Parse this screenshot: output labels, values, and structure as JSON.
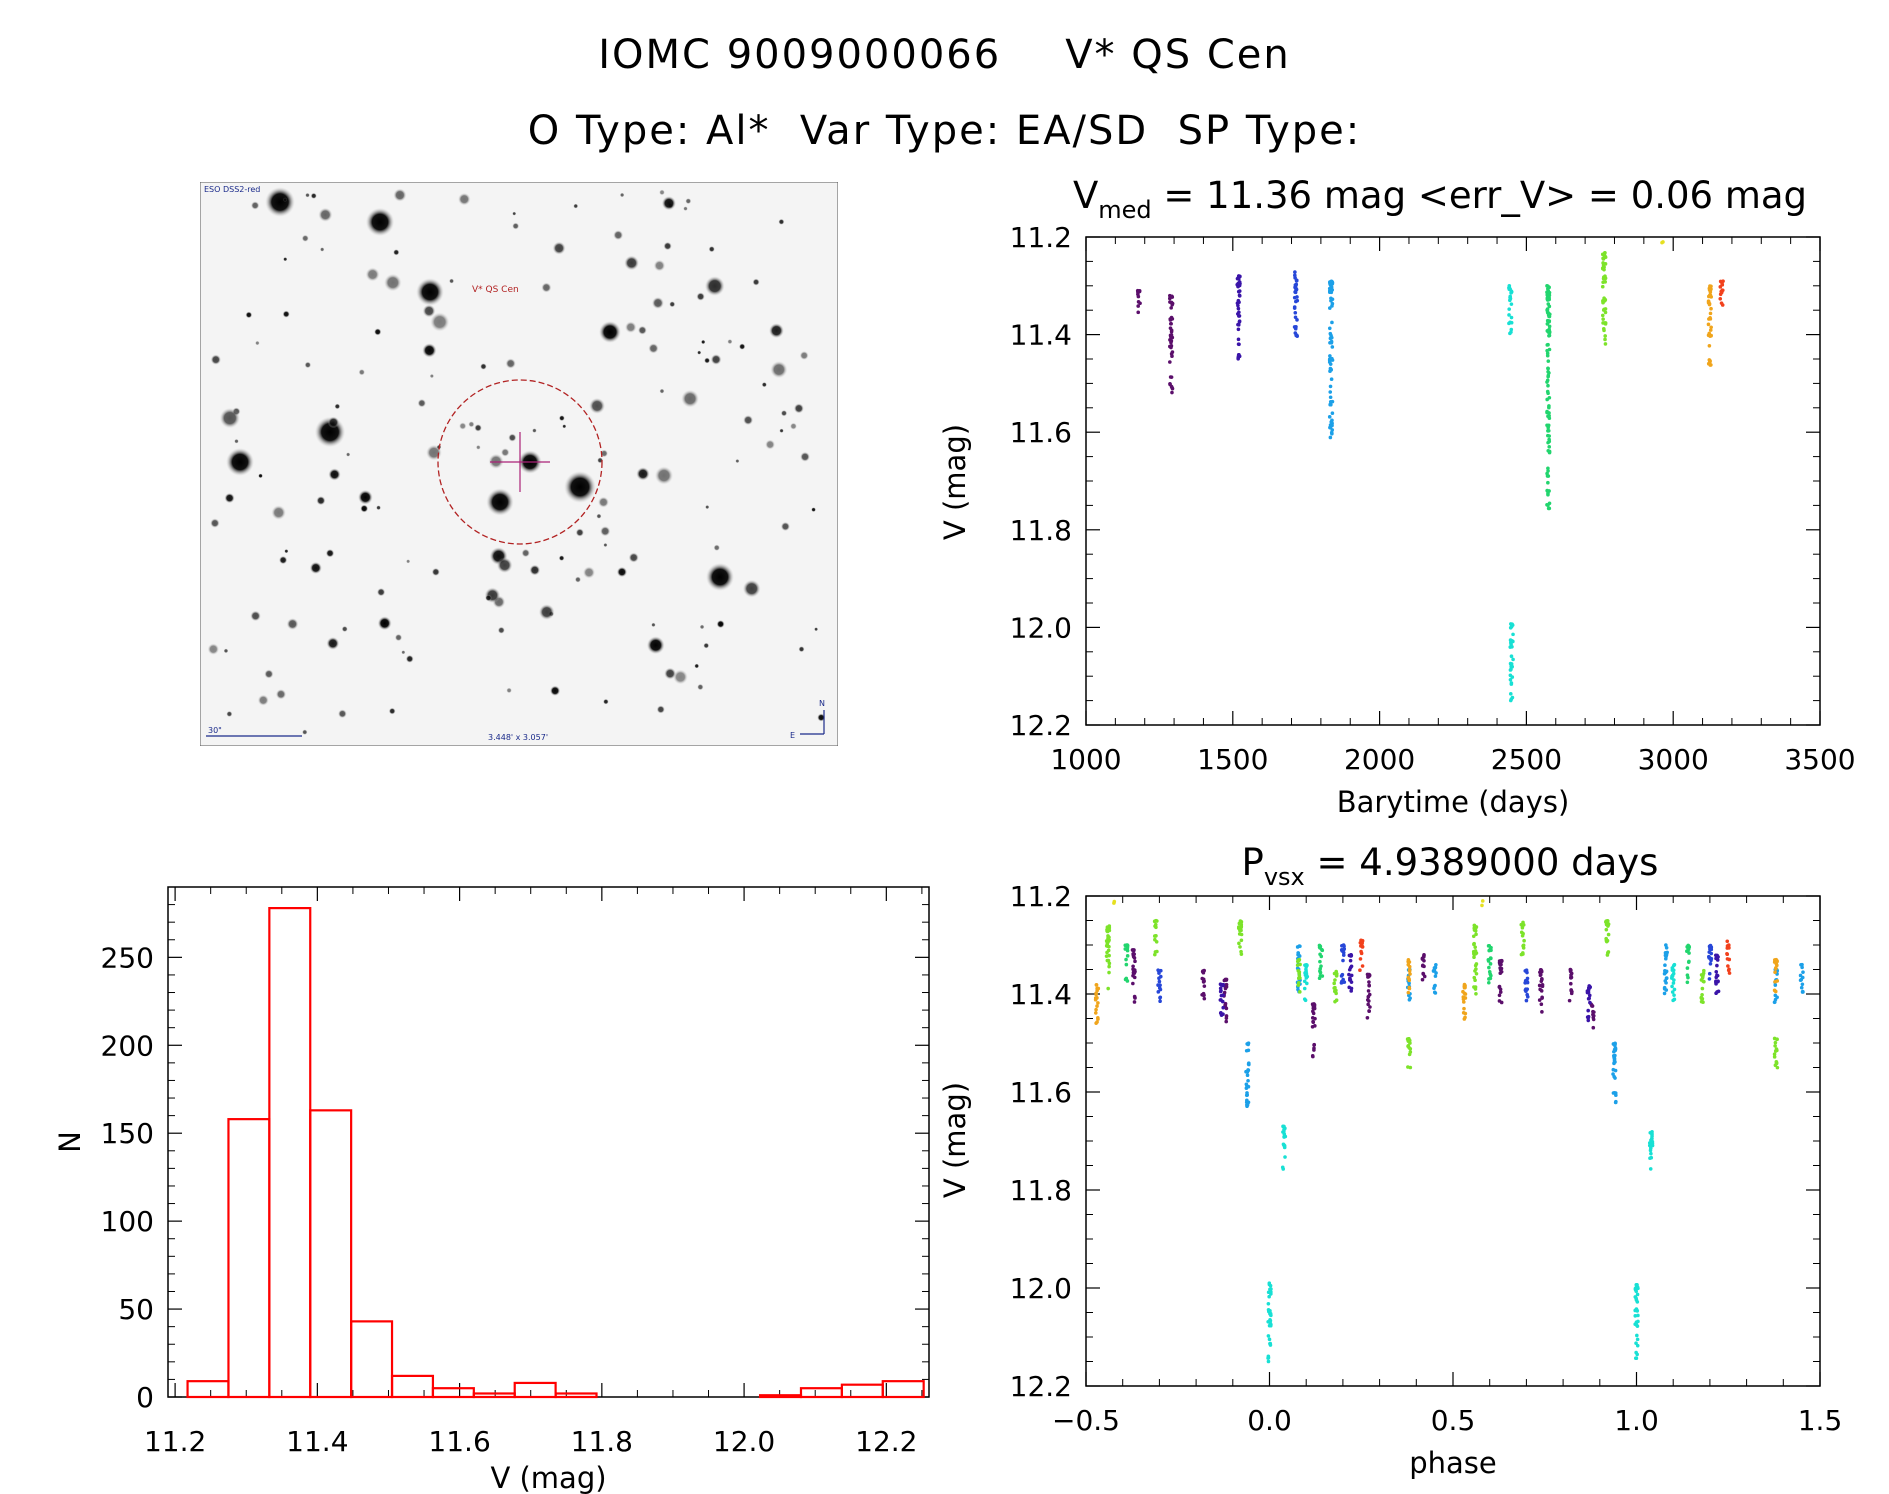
{
  "header": {
    "line1_id": "IOMC 9009000066",
    "line1_name": "V* QS Cen",
    "line2": "O Type: Al*  Var Type: EA/SD  SP Type:"
  },
  "finder": {
    "survey_label": "ESO DSS2-red",
    "target_label": "V* QS Cen",
    "scale_label": "30\"",
    "fov_label": "3.448' x 3.057'",
    "north_label": "N",
    "east_label": "E"
  },
  "chart_data": [
    {
      "id": "lightcurve",
      "type": "scatter",
      "title_prefix": "V",
      "title_sub": "med",
      "title_rest": " = 11.36 mag <err_V> = 0.06 mag",
      "xlabel": "Barytime (days)",
      "ylabel": "V (mag)",
      "xlim": [
        1000,
        3500
      ],
      "ylim": [
        12.2,
        11.2
      ],
      "xticks": [
        "1000",
        "1500",
        "2000",
        "2500",
        "3000",
        "3500"
      ],
      "yticks": [
        "11.2",
        "11.4",
        "11.6",
        "11.8",
        "12.0",
        "12.2"
      ],
      "series": [
        {
          "color": "#5b0f6b",
          "segments": [
            [
              1180,
              11.31,
              11.36
            ],
            [
              1290,
              11.32,
              11.52
            ]
          ]
        },
        {
          "color": "#3a14a8",
          "segments": [
            [
              1520,
              11.28,
              11.47
            ]
          ]
        },
        {
          "color": "#2747d8",
          "segments": [
            [
              1715,
              11.27,
              11.41
            ]
          ]
        },
        {
          "color": "#1ca0e8",
          "segments": [
            [
              1835,
              11.29,
              11.63
            ]
          ]
        },
        {
          "color": "#18e0d4",
          "segments": [
            [
              2445,
              11.3,
              11.4
            ],
            [
              2450,
              11.99,
              12.15
            ]
          ]
        },
        {
          "color": "#22d56e",
          "segments": [
            [
              2575,
              11.3,
              11.76
            ]
          ]
        },
        {
          "color": "#7de32a",
          "segments": [
            [
              2765,
              11.23,
              11.43
            ]
          ]
        },
        {
          "color": "#f0a51c",
          "segments": [
            [
              3125,
              11.3,
              11.47
            ]
          ]
        },
        {
          "color": "#f2411c",
          "segments": [
            [
              3165,
              11.29,
              11.35
            ]
          ]
        },
        {
          "color": "#e6e020",
          "segments": [
            [
              2965,
              11.21,
              11.22
            ]
          ]
        }
      ]
    },
    {
      "id": "histogram",
      "type": "bar",
      "xlabel": "V (mag)",
      "ylabel": "N",
      "xlim": [
        11.19,
        12.26
      ],
      "ylim": [
        0,
        290
      ],
      "bin_width": 0.0575,
      "bin_start": 11.2175,
      "values": [
        9,
        158,
        278,
        163,
        43,
        12,
        5,
        2,
        8,
        2,
        0,
        0,
        0,
        0,
        1,
        5,
        7,
        9
      ],
      "xticks": [
        "11.2",
        "11.4",
        "11.6",
        "11.8",
        "12.0",
        "12.2"
      ],
      "yticks": [
        "0",
        "50",
        "100",
        "150",
        "200",
        "250"
      ]
    },
    {
      "id": "phased",
      "type": "scatter",
      "title_prefix": "P",
      "title_sub": "vsx",
      "title_rest": " = 4.9389000 days",
      "xlabel": "phase",
      "ylabel": "V (mag)",
      "xlim": [
        -0.5,
        1.5
      ],
      "ylim": [
        12.2,
        11.2
      ],
      "xticks": [
        "−0.5",
        "0.0",
        "0.5",
        "1.0",
        "1.5"
      ],
      "yticks": [
        "11.2",
        "11.4",
        "11.6",
        "11.8",
        "12.0",
        "12.2"
      ],
      "period_days": 4.9389,
      "series": [
        {
          "color": "#5b0f6b",
          "segments": [
            [
              -0.37,
              11.31,
              11.42
            ],
            [
              -0.18,
              11.35,
              11.42
            ],
            [
              -0.12,
              11.37,
              11.46
            ],
            [
              0.12,
              11.42,
              11.53
            ],
            [
              0.27,
              11.36,
              11.45
            ],
            [
              0.42,
              11.32,
              11.38
            ],
            [
              0.63,
              11.33,
              11.42
            ],
            [
              0.74,
              11.35,
              11.44
            ],
            [
              0.82,
              11.35,
              11.42
            ],
            [
              0.88,
              11.42,
              11.47
            ]
          ]
        },
        {
          "color": "#3a14a8",
          "segments": [
            [
              -0.13,
              11.38,
              11.46
            ],
            [
              0.22,
              11.32,
              11.4
            ],
            [
              0.87,
              11.38,
              11.46
            ],
            [
              1.22,
              11.32,
              11.4
            ]
          ]
        },
        {
          "color": "#2747d8",
          "segments": [
            [
              -0.3,
              11.35,
              11.42
            ],
            [
              0.2,
              11.3,
              11.38
            ],
            [
              0.7,
              11.35,
              11.42
            ],
            [
              1.2,
              11.3,
              11.38
            ]
          ]
        },
        {
          "color": "#1ca0e8",
          "segments": [
            [
              -0.06,
              11.5,
              11.63
            ],
            [
              0.08,
              11.3,
              11.4
            ],
            [
              0.38,
              11.35,
              11.42
            ],
            [
              0.45,
              11.34,
              11.4
            ],
            [
              0.94,
              11.5,
              11.63
            ],
            [
              1.08,
              11.3,
              11.4
            ],
            [
              1.38,
              11.35,
              11.42
            ],
            [
              1.45,
              11.34,
              11.4
            ]
          ]
        },
        {
          "color": "#18e0d4",
          "segments": [
            [
              0.0,
              11.99,
              12.15
            ],
            [
              0.04,
              11.67,
              11.76
            ],
            [
              0.1,
              11.34,
              11.42
            ],
            [
              1.0,
              11.99,
              12.15
            ],
            [
              1.04,
              11.67,
              11.76
            ],
            [
              1.1,
              11.34,
              11.42
            ]
          ]
        },
        {
          "color": "#22d56e",
          "segments": [
            [
              -0.39,
              11.3,
              11.38
            ],
            [
              0.14,
              11.3,
              11.38
            ],
            [
              0.6,
              11.3,
              11.38
            ],
            [
              1.14,
              11.3,
              11.38
            ]
          ]
        },
        {
          "color": "#7de32a",
          "segments": [
            [
              -0.44,
              11.26,
              11.4
            ],
            [
              -0.31,
              11.25,
              11.32
            ],
            [
              -0.08,
              11.25,
              11.33
            ],
            [
              0.08,
              11.33,
              11.4
            ],
            [
              0.18,
              11.35,
              11.42
            ],
            [
              0.38,
              11.49,
              11.56
            ],
            [
              0.56,
              11.26,
              11.4
            ],
            [
              0.69,
              11.25,
              11.32
            ],
            [
              0.92,
              11.25,
              11.33
            ],
            [
              1.18,
              11.35,
              11.42
            ],
            [
              1.38,
              11.49,
              11.56
            ]
          ]
        },
        {
          "color": "#f0a51c",
          "segments": [
            [
              -0.47,
              11.38,
              11.46
            ],
            [
              0.38,
              11.33,
              11.4
            ],
            [
              0.53,
              11.38,
              11.46
            ],
            [
              1.38,
              11.33,
              11.4
            ]
          ]
        },
        {
          "color": "#f2411c",
          "segments": [
            [
              0.25,
              11.29,
              11.36
            ],
            [
              1.25,
              11.29,
              11.36
            ]
          ]
        },
        {
          "color": "#e6e020",
          "segments": [
            [
              -0.42,
              11.21,
              11.22
            ],
            [
              0.58,
              11.21,
              11.22
            ]
          ]
        }
      ]
    }
  ]
}
